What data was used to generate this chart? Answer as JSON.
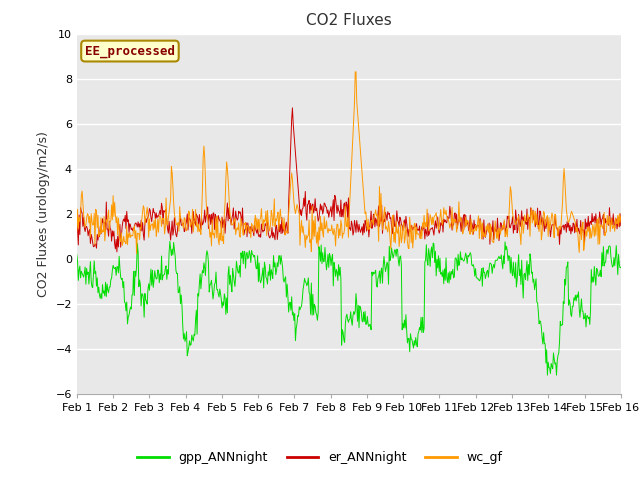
{
  "title": "CO2 Fluxes",
  "ylabel": "CO2 Fluxes (urology/m2/s)",
  "ylim": [
    -6,
    10
  ],
  "yticks": [
    -6,
    -4,
    -2,
    0,
    2,
    4,
    6,
    8,
    10
  ],
  "xlim": [
    0,
    15
  ],
  "xtick_labels": [
    "Feb 1",
    "Feb 2",
    "Feb 3",
    "Feb 4",
    "Feb 5",
    "Feb 6",
    "Feb 7",
    "Feb 8",
    "Feb 9",
    "Feb 10",
    "Feb 11",
    "Feb 12",
    "Feb 13",
    "Feb 14",
    "Feb 15",
    "Feb 16"
  ],
  "colors": {
    "gpp": "#00dd00",
    "er": "#cc0000",
    "wc": "#ff9900"
  },
  "legend_labels": [
    "gpp_ANNnight",
    "er_ANNnight",
    "wc_gf"
  ],
  "annotation_text": "EE_processed",
  "annotation_box_color": "#ffffcc",
  "annotation_box_edge": "#aa8800",
  "plot_bg_color": "#e8e8e8",
  "fig_bg_color": "#ffffff",
  "grid_color": "#ffffff",
  "title_fontsize": 11,
  "label_fontsize": 9,
  "tick_fontsize": 8,
  "n_points": 720
}
